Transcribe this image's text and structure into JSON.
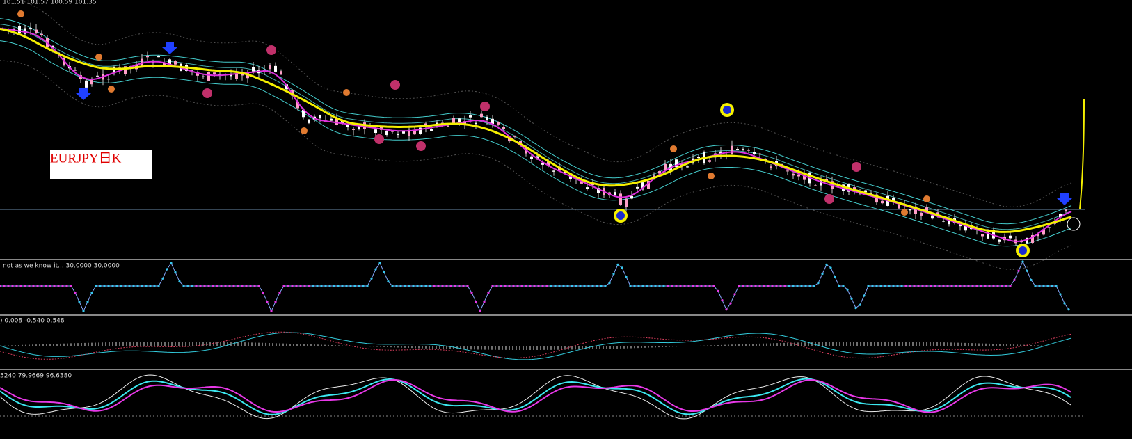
{
  "header": {
    "ohlc": "101.51 101.57 100.59 101.35"
  },
  "label": "EURJPY日K",
  "panels": [
    {
      "label": "not as we know it... 30.0000 30.0000"
    },
    {
      "label": ") 0.008 -0.540 0.548"
    },
    {
      "label": "5240 79.9669 96.6380"
    }
  ]
}
